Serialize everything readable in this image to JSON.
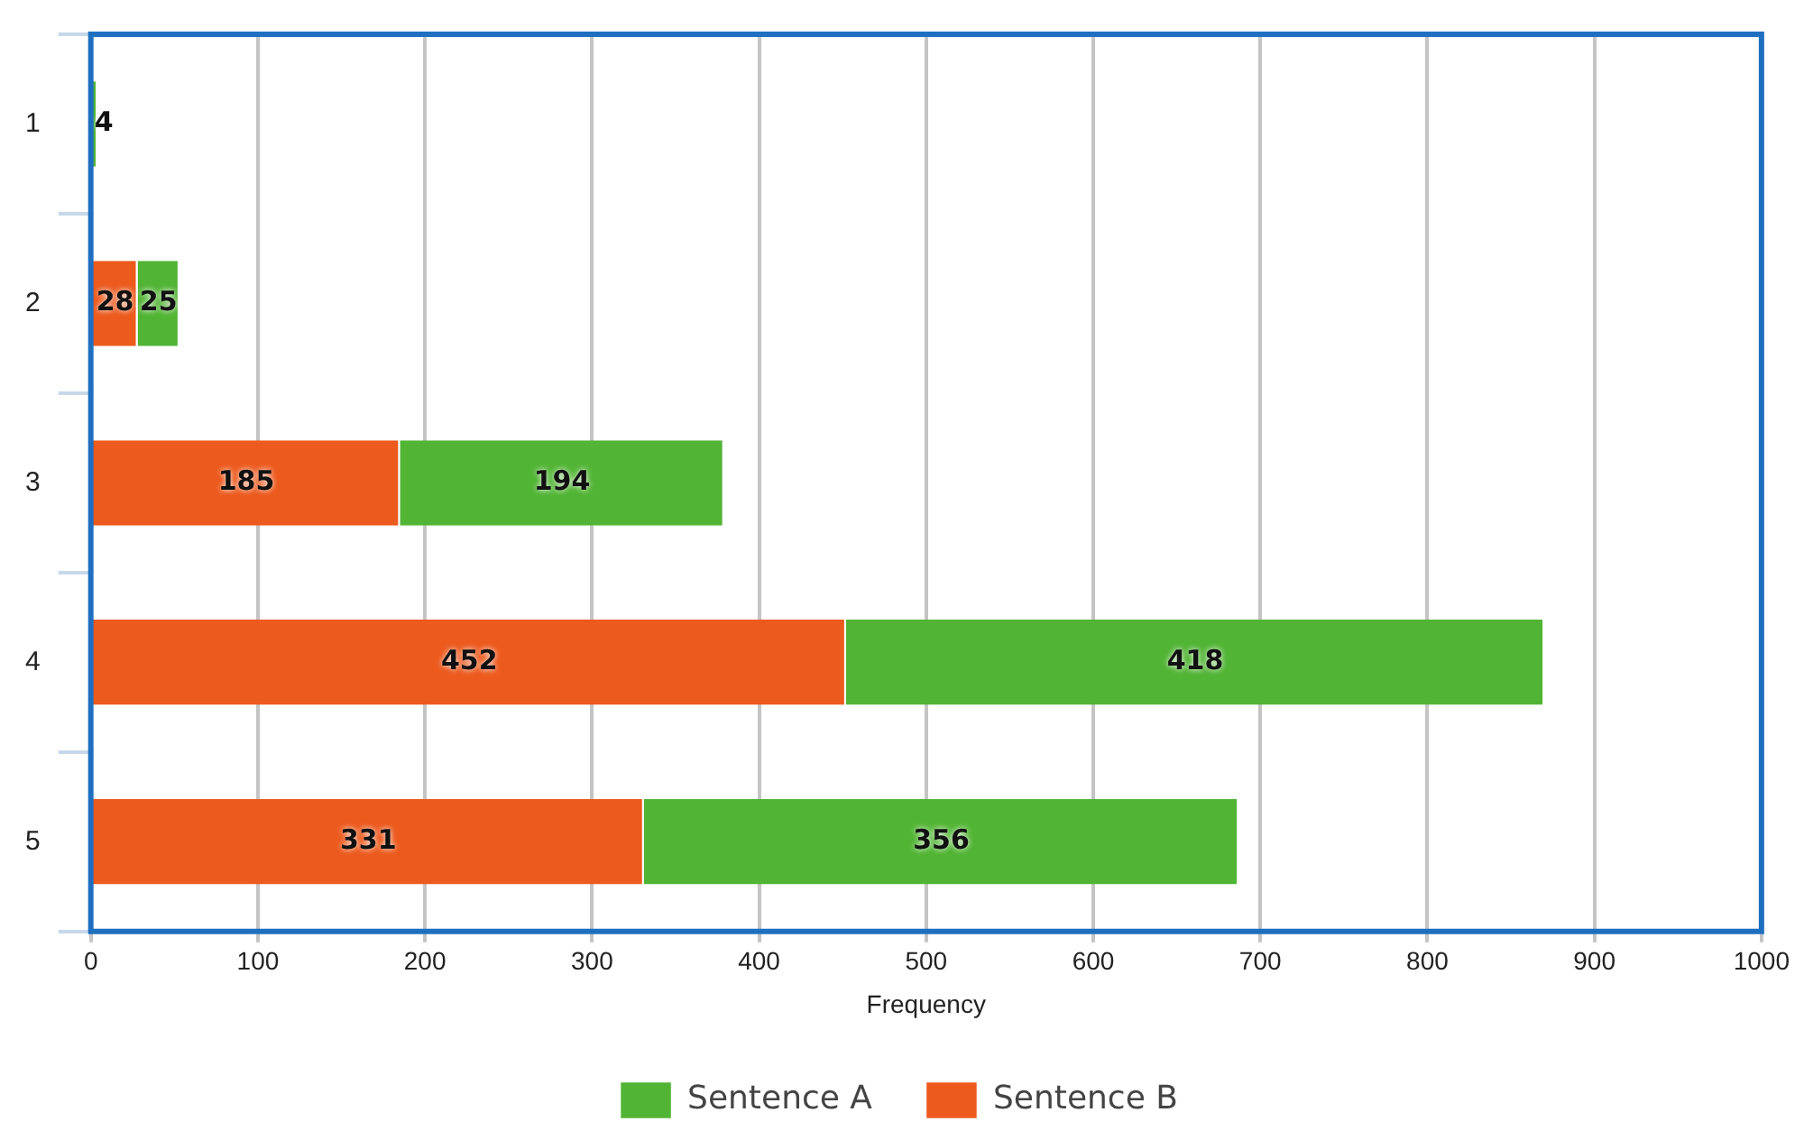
{
  "chart_data": {
    "type": "bar",
    "orientation": "horizontal",
    "stacked": true,
    "categories": [
      "1",
      "2",
      "3",
      "4",
      "5"
    ],
    "series": [
      {
        "name": "Sentence B",
        "color": "#ec5a1e",
        "values": [
          null,
          28,
          185,
          452,
          331
        ]
      },
      {
        "name": "Sentence A",
        "color": "#52b435",
        "values": [
          4,
          25,
          194,
          418,
          356
        ]
      }
    ],
    "xlabel": "Frequency",
    "xlim": [
      0,
      1000
    ],
    "xticks": [
      0,
      100,
      200,
      300,
      400,
      500,
      600,
      700,
      800,
      900,
      1000
    ],
    "grid": "x",
    "legend": "bottom",
    "data_labels": true
  }
}
